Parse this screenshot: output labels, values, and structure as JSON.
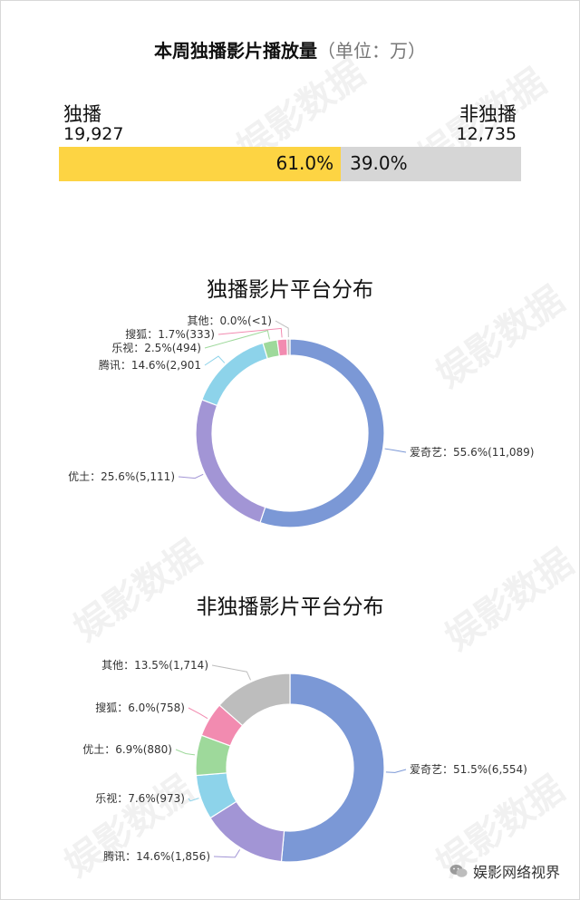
{
  "header": {
    "title": "本周独播影片播放量",
    "unit": "（单位：万）"
  },
  "summary": {
    "left_label": "独播",
    "left_value": "19,927",
    "right_label": "非独播",
    "right_value": "12,735",
    "left_pct_text": "61.0%",
    "right_pct_text": "39.0%",
    "left_share": 0.61,
    "colors": {
      "left": "#fdd443",
      "right": "#d6d6d6"
    }
  },
  "watermark": {
    "text": "娱影数据"
  },
  "footer": {
    "account": "娱影网络视界"
  },
  "chart_data": [
    {
      "type": "pie",
      "title": "独播影片平台分布",
      "slices": [
        {
          "name": "爱奇艺",
          "value": 11089,
          "pct": 55.6,
          "label": "爱奇艺：55.6%(11,089)",
          "color": "#7b98d6"
        },
        {
          "name": "优土",
          "value": 5111,
          "pct": 25.6,
          "label": "优土：25.6%(5,111)",
          "color": "#a295d5"
        },
        {
          "name": "腾讯",
          "value": 2901,
          "pct": 14.6,
          "label": "腾讯：14.6%(2,901",
          "color": "#8dd3ea"
        },
        {
          "name": "乐视",
          "value": 494,
          "pct": 2.5,
          "label": "乐视：2.5%(494)",
          "color": "#9ed99b"
        },
        {
          "name": "搜狐",
          "value": 333,
          "pct": 1.7,
          "label": "搜狐：1.7%(333)",
          "color": "#f28bb0"
        },
        {
          "name": "其他",
          "value": 0,
          "pct": 0.0,
          "label": "其他：0.0%(<1)",
          "color": "#bdbdbd"
        }
      ]
    },
    {
      "type": "pie",
      "title": "非独播影片平台分布",
      "slices": [
        {
          "name": "爱奇艺",
          "value": 6554,
          "pct": 51.5,
          "label": "爱奇艺：51.5%(6,554)",
          "color": "#7b98d6"
        },
        {
          "name": "腾讯",
          "value": 1856,
          "pct": 14.6,
          "label": "腾讯：14.6%(1,856)",
          "color": "#a295d5"
        },
        {
          "name": "乐视",
          "value": 973,
          "pct": 7.6,
          "label": "乐视：7.6%(973)",
          "color": "#8dd3ea"
        },
        {
          "name": "优土",
          "value": 880,
          "pct": 6.9,
          "label": "优土：6.9%(880)",
          "color": "#9ed99b"
        },
        {
          "name": "搜狐",
          "value": 758,
          "pct": 6.0,
          "label": "搜狐：6.0%(758)",
          "color": "#f28bb0"
        },
        {
          "name": "其他",
          "value": 1714,
          "pct": 13.5,
          "label": "其他：13.5%(1,714)",
          "color": "#bdbdbd"
        }
      ]
    }
  ]
}
